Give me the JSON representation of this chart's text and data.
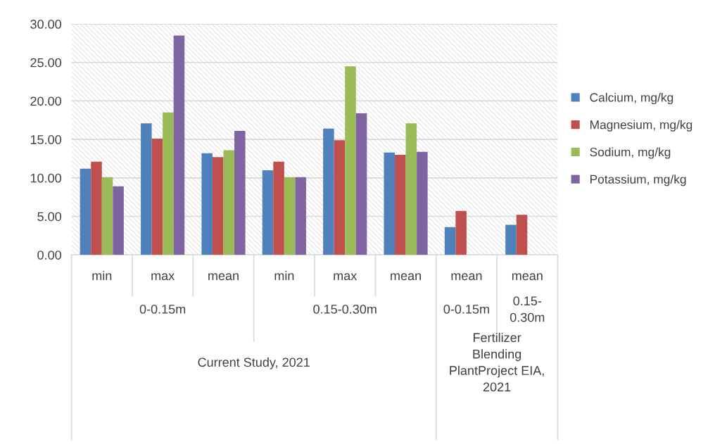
{
  "chart_data": {
    "type": "bar",
    "categories": [
      "min",
      "max",
      "mean",
      "min",
      "max",
      "mean",
      "mean",
      "mean"
    ],
    "series": [
      {
        "name": "Calcium, mg/kg",
        "color": "#4f81bd",
        "values": [
          11.2,
          17.1,
          13.2,
          11.0,
          16.4,
          13.3,
          3.6,
          3.9
        ]
      },
      {
        "name": "Magnesium, mg/kg",
        "color": "#c0504d",
        "values": [
          12.1,
          15.1,
          12.7,
          12.1,
          14.9,
          13.0,
          5.7,
          5.2
        ]
      },
      {
        "name": "Sodium, mg/kg",
        "color": "#9bbb59",
        "values": [
          10.1,
          18.5,
          13.6,
          10.1,
          24.5,
          17.1,
          null,
          null
        ]
      },
      {
        "name": "Potassium, mg/kg",
        "color": "#8064a2",
        "values": [
          8.9,
          28.5,
          16.1,
          10.1,
          18.4,
          13.4,
          null,
          null
        ]
      }
    ],
    "annotations": [
      "0-0.15m",
      "0.15-0.30m",
      "0-0.15m",
      "0.15-\n0.30m",
      "Current Study, 2021",
      "Fertilizer\nBlending\nPlantProject EIA,\n2021"
    ],
    "ylim": [
      0,
      30
    ],
    "yticks": [
      {
        "value": 0,
        "label": "0.00"
      },
      {
        "value": 5,
        "label": "5.00"
      },
      {
        "value": 10,
        "label": "10.00"
      },
      {
        "value": 15,
        "label": "15.00"
      },
      {
        "value": 20,
        "label": "20.00"
      },
      {
        "value": 25,
        "label": "25.00"
      },
      {
        "value": 30,
        "label": "30.00"
      }
    ],
    "grid": "y",
    "legend": "right"
  }
}
